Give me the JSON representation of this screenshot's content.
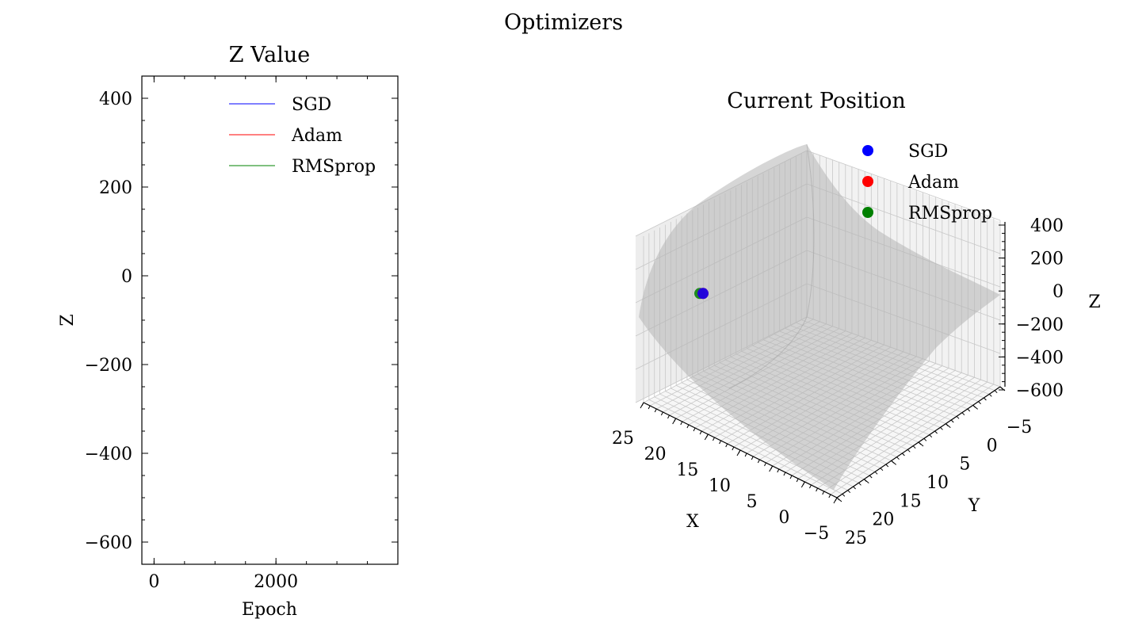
{
  "figure": {
    "title": "Optimizers"
  },
  "chart_data": [
    {
      "type": "line",
      "title": "Z Value",
      "xlabel": "Epoch",
      "ylabel": "Z",
      "xlim": [
        -200,
        4000
      ],
      "ylim": [
        -650,
        450
      ],
      "x_ticks": [
        0,
        2000
      ],
      "y_ticks": [
        400,
        200,
        0,
        -200,
        -400,
        -600
      ],
      "legend_position": "upper-right",
      "grid": false,
      "series": [
        {
          "name": "SGD",
          "color": "#8080ff",
          "x": [],
          "y": []
        },
        {
          "name": "Adam",
          "color": "#ff8080",
          "x": [],
          "y": []
        },
        {
          "name": "RMSprop",
          "color": "#80c080",
          "x": [],
          "y": []
        }
      ]
    },
    {
      "type": "scatter",
      "title": "Current Position",
      "xlabel": "X",
      "ylabel": "Y",
      "zlabel": "Z",
      "xlim": [
        -5,
        25
      ],
      "ylim": [
        -5,
        25
      ],
      "zlim": [
        -600,
        400
      ],
      "x_ticks": [
        25,
        20,
        15,
        10,
        5,
        0,
        -5
      ],
      "y_ticks": [
        -5,
        0,
        5,
        10,
        15,
        20,
        25
      ],
      "z_ticks": [
        400,
        200,
        0,
        -200,
        -400,
        -600
      ],
      "legend_position": "upper-right",
      "grid": true,
      "surface": {
        "color": "#b4b4b4"
      },
      "series": [
        {
          "name": "SGD",
          "color": "#0000ff",
          "x": [
            0
          ],
          "y": [
            0
          ],
          "z": [
            200
          ]
        },
        {
          "name": "Adam",
          "color": "#ff0000",
          "x": [
            0
          ],
          "y": [
            0
          ],
          "z": [
            200
          ]
        },
        {
          "name": "RMSprop",
          "color": "#008000",
          "x": [
            0
          ],
          "y": [
            0
          ],
          "z": [
            200
          ]
        }
      ]
    }
  ]
}
